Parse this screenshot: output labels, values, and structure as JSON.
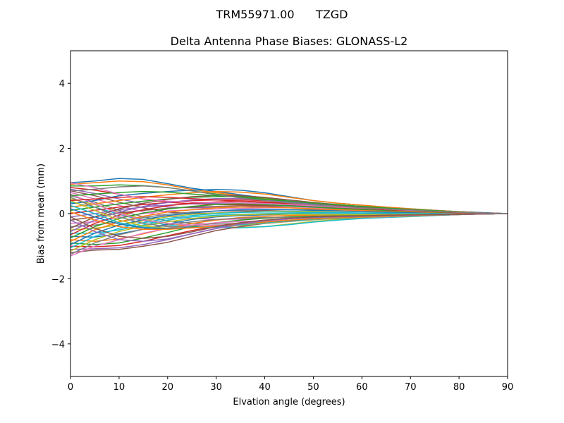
{
  "chart_data": {
    "type": "line",
    "suptitle": "TRM55971.00      TZGD",
    "title": "Delta Antenna Phase Biases: GLONASS-L2",
    "xlabel": "Elvation angle (degrees)",
    "ylabel": "Bias from mean (mm)",
    "xlim": [
      0,
      90
    ],
    "ylim": [
      -5,
      5
    ],
    "xticks": [
      0,
      10,
      20,
      30,
      40,
      50,
      60,
      70,
      80,
      90
    ],
    "yticks": [
      -4,
      -2,
      0,
      2,
      4
    ],
    "ytick_labels": [
      "−4",
      "−2",
      "0",
      "2",
      "4"
    ],
    "grid": false,
    "legend": "none",
    "x": [
      0,
      5,
      10,
      15,
      20,
      25,
      30,
      35,
      40,
      45,
      50,
      55,
      60,
      65,
      70,
      75,
      80,
      85,
      90
    ],
    "colors": [
      "#1f77b4",
      "#ff7f0e",
      "#2ca02c",
      "#d62728",
      "#9467bd",
      "#8c564b",
      "#e377c2",
      "#7f7f7f",
      "#bcbd22",
      "#17becf"
    ],
    "series": [
      {
        "values": [
          0.95,
          1.0,
          1.08,
          1.05,
          0.92,
          0.78,
          0.68,
          0.58,
          0.48,
          0.38,
          0.3,
          0.26,
          0.22,
          0.18,
          0.14,
          0.1,
          0.06,
          0.03,
          0.0
        ]
      },
      {
        "values": [
          0.9,
          0.95,
          1.0,
          0.98,
          0.88,
          0.74,
          0.64,
          0.55,
          0.46,
          0.37,
          0.3,
          0.25,
          0.21,
          0.17,
          0.13,
          0.09,
          0.05,
          0.02,
          0.0
        ]
      },
      {
        "values": [
          0.85,
          0.85,
          0.88,
          0.86,
          0.8,
          0.7,
          0.6,
          0.52,
          0.44,
          0.35,
          0.28,
          0.24,
          0.2,
          0.16,
          0.12,
          0.08,
          0.05,
          0.02,
          0.0
        ]
      },
      {
        "values": [
          0.8,
          0.72,
          0.6,
          0.45,
          0.35,
          0.3,
          0.28,
          0.27,
          0.26,
          0.25,
          0.22,
          0.2,
          0.18,
          0.15,
          0.11,
          0.08,
          0.04,
          0.02,
          0.0
        ]
      },
      {
        "values": [
          0.75,
          0.62,
          0.45,
          0.3,
          0.2,
          0.18,
          0.18,
          0.2,
          0.22,
          0.22,
          0.2,
          0.18,
          0.16,
          0.13,
          0.1,
          0.07,
          0.04,
          0.02,
          0.0
        ]
      },
      {
        "values": [
          0.7,
          0.55,
          0.35,
          0.18,
          0.05,
          0.0,
          0.02,
          0.06,
          0.1,
          0.12,
          0.12,
          0.12,
          0.11,
          0.09,
          0.07,
          0.05,
          0.03,
          0.01,
          0.0
        ]
      },
      {
        "values": [
          0.65,
          0.45,
          0.25,
          0.05,
          -0.08,
          -0.15,
          -0.18,
          -0.17,
          -0.14,
          -0.1,
          -0.08,
          -0.06,
          -0.05,
          -0.04,
          -0.03,
          -0.02,
          -0.01,
          0.0,
          0.0
        ]
      },
      {
        "values": [
          0.55,
          0.35,
          0.1,
          -0.1,
          -0.22,
          -0.3,
          -0.32,
          -0.3,
          -0.26,
          -0.2,
          -0.15,
          -0.12,
          -0.1,
          -0.08,
          -0.06,
          -0.04,
          -0.02,
          -0.01,
          0.0
        ]
      },
      {
        "values": [
          0.45,
          0.28,
          0.05,
          -0.18,
          -0.3,
          -0.38,
          -0.42,
          -0.42,
          -0.4,
          -0.32,
          -0.24,
          -0.18,
          -0.14,
          -0.11,
          -0.08,
          -0.05,
          -0.03,
          -0.01,
          0.0
        ]
      },
      {
        "values": [
          0.35,
          0.2,
          -0.02,
          -0.22,
          -0.35,
          -0.4,
          -0.42,
          -0.44,
          -0.4,
          -0.34,
          -0.26,
          -0.2,
          -0.15,
          -0.12,
          -0.09,
          -0.06,
          -0.03,
          -0.01,
          0.0
        ]
      },
      {
        "values": [
          0.3,
          0.4,
          0.55,
          0.62,
          0.68,
          0.72,
          0.74,
          0.72,
          0.64,
          0.52,
          0.4,
          0.32,
          0.26,
          0.2,
          0.15,
          0.1,
          0.06,
          0.03,
          0.0
        ]
      },
      {
        "values": [
          0.2,
          0.3,
          0.4,
          0.5,
          0.58,
          0.64,
          0.68,
          0.66,
          0.6,
          0.5,
          0.4,
          0.32,
          0.26,
          0.2,
          0.15,
          0.1,
          0.06,
          0.02,
          0.0
        ]
      },
      {
        "values": [
          0.1,
          0.2,
          0.3,
          0.38,
          0.45,
          0.5,
          0.52,
          0.52,
          0.48,
          0.42,
          0.34,
          0.28,
          0.22,
          0.17,
          0.13,
          0.09,
          0.05,
          0.02,
          0.0
        ]
      },
      {
        "values": [
          0.0,
          0.1,
          0.2,
          0.28,
          0.34,
          0.4,
          0.42,
          0.42,
          0.4,
          0.36,
          0.3,
          0.25,
          0.2,
          0.16,
          0.12,
          0.08,
          0.05,
          0.02,
          0.0
        ]
      },
      {
        "values": [
          -0.1,
          0.0,
          0.12,
          0.2,
          0.26,
          0.3,
          0.32,
          0.33,
          0.32,
          0.3,
          0.26,
          0.22,
          0.18,
          0.14,
          0.1,
          0.07,
          0.04,
          0.02,
          0.0
        ]
      },
      {
        "values": [
          -0.2,
          -0.1,
          0.02,
          0.1,
          0.16,
          0.2,
          0.22,
          0.24,
          0.24,
          0.24,
          0.22,
          0.19,
          0.16,
          0.13,
          0.1,
          0.06,
          0.04,
          0.02,
          0.0
        ]
      },
      {
        "values": [
          -0.3,
          -0.25,
          -0.12,
          0.0,
          0.08,
          0.12,
          0.14,
          0.16,
          0.18,
          0.18,
          0.17,
          0.15,
          0.13,
          0.1,
          0.08,
          0.05,
          0.03,
          0.01,
          0.0
        ]
      },
      {
        "values": [
          -0.4,
          -0.35,
          -0.25,
          -0.12,
          -0.02,
          0.05,
          0.08,
          0.1,
          0.12,
          0.12,
          0.12,
          0.11,
          0.1,
          0.08,
          0.06,
          0.04,
          0.02,
          0.01,
          0.0
        ]
      },
      {
        "values": [
          -0.5,
          -0.45,
          -0.35,
          -0.22,
          -0.1,
          -0.02,
          0.02,
          0.04,
          0.06,
          0.07,
          0.07,
          0.07,
          0.06,
          0.05,
          0.04,
          0.03,
          0.02,
          0.01,
          0.0
        ]
      },
      {
        "values": [
          -0.6,
          -0.6,
          -0.5,
          -0.35,
          -0.2,
          -0.1,
          -0.05,
          -0.02,
          0.0,
          0.01,
          0.02,
          0.02,
          0.02,
          0.02,
          0.01,
          0.01,
          0.0,
          0.0,
          0.0
        ]
      },
      {
        "values": [
          -0.7,
          -0.72,
          -0.62,
          -0.48,
          -0.32,
          -0.18,
          -0.1,
          -0.06,
          -0.04,
          -0.02,
          -0.02,
          -0.02,
          -0.02,
          -0.01,
          -0.01,
          -0.01,
          0.0,
          0.0,
          0.0
        ]
      },
      {
        "values": [
          -0.8,
          -0.85,
          -0.78,
          -0.62,
          -0.45,
          -0.3,
          -0.2,
          -0.12,
          -0.08,
          -0.06,
          -0.05,
          -0.04,
          -0.04,
          -0.03,
          -0.02,
          -0.01,
          -0.01,
          0.0,
          0.0
        ]
      },
      {
        "values": [
          -0.9,
          -0.95,
          -0.9,
          -0.75,
          -0.58,
          -0.4,
          -0.28,
          -0.2,
          -0.14,
          -0.1,
          -0.08,
          -0.07,
          -0.06,
          -0.05,
          -0.04,
          -0.02,
          -0.01,
          0.0,
          0.0
        ]
      },
      {
        "values": [
          -1.0,
          -1.02,
          -0.98,
          -0.85,
          -0.68,
          -0.52,
          -0.38,
          -0.28,
          -0.2,
          -0.15,
          -0.12,
          -0.1,
          -0.08,
          -0.06,
          -0.05,
          -0.03,
          -0.02,
          -0.01,
          0.0
        ]
      },
      {
        "values": [
          -1.1,
          -1.08,
          -1.05,
          -0.95,
          -0.8,
          -0.62,
          -0.46,
          -0.34,
          -0.26,
          -0.2,
          -0.16,
          -0.13,
          -0.1,
          -0.08,
          -0.06,
          -0.04,
          -0.02,
          -0.01,
          0.0
        ]
      },
      {
        "values": [
          -1.2,
          -1.12,
          -1.1,
          -1.0,
          -0.88,
          -0.7,
          -0.52,
          -0.4,
          -0.3,
          -0.24,
          -0.18,
          -0.14,
          -0.11,
          -0.09,
          -0.07,
          -0.05,
          -0.03,
          -0.01,
          0.0
        ]
      },
      {
        "values": [
          -1.3,
          -1.0,
          -0.8,
          -0.6,
          -0.45,
          -0.35,
          -0.28,
          -0.24,
          -0.22,
          -0.2,
          -0.18,
          -0.15,
          -0.12,
          -0.1,
          -0.07,
          -0.05,
          -0.03,
          -0.01,
          0.0
        ]
      },
      {
        "values": [
          -1.25,
          -0.9,
          -0.65,
          -0.48,
          -0.35,
          -0.25,
          -0.18,
          -0.14,
          -0.12,
          -0.12,
          -0.12,
          -0.1,
          -0.09,
          -0.07,
          -0.05,
          -0.04,
          -0.02,
          -0.01,
          0.0
        ]
      },
      {
        "values": [
          -1.15,
          -0.8,
          -0.55,
          -0.38,
          -0.25,
          -0.15,
          -0.08,
          -0.04,
          -0.02,
          -0.02,
          -0.03,
          -0.03,
          -0.03,
          -0.03,
          -0.02,
          -0.02,
          -0.01,
          0.0,
          0.0
        ]
      },
      {
        "values": [
          -1.05,
          -0.7,
          -0.45,
          -0.28,
          -0.15,
          -0.06,
          0.0,
          0.04,
          0.05,
          0.05,
          0.04,
          0.03,
          0.02,
          0.02,
          0.01,
          0.01,
          0.0,
          0.0,
          0.0
        ]
      },
      {
        "values": [
          -0.95,
          -0.6,
          -0.35,
          -0.18,
          -0.06,
          0.02,
          0.08,
          0.12,
          0.13,
          0.12,
          0.1,
          0.08,
          0.06,
          0.05,
          0.04,
          0.03,
          0.02,
          0.01,
          0.0
        ]
      },
      {
        "values": [
          -0.85,
          -0.5,
          -0.25,
          -0.08,
          0.05,
          0.12,
          0.18,
          0.2,
          0.2,
          0.18,
          0.15,
          0.12,
          0.1,
          0.08,
          0.06,
          0.04,
          0.02,
          0.01,
          0.0
        ]
      },
      {
        "values": [
          -0.75,
          -0.4,
          -0.15,
          0.02,
          0.14,
          0.22,
          0.28,
          0.3,
          0.28,
          0.24,
          0.2,
          0.16,
          0.13,
          0.1,
          0.08,
          0.05,
          0.03,
          0.01,
          0.0
        ]
      },
      {
        "values": [
          -0.65,
          -0.3,
          -0.05,
          0.12,
          0.24,
          0.32,
          0.36,
          0.38,
          0.36,
          0.31,
          0.25,
          0.2,
          0.16,
          0.12,
          0.09,
          0.06,
          0.03,
          0.01,
          0.0
        ]
      },
      {
        "values": [
          -0.55,
          -0.2,
          0.05,
          0.22,
          0.34,
          0.42,
          0.46,
          0.46,
          0.42,
          0.36,
          0.29,
          0.23,
          0.18,
          0.14,
          0.1,
          0.07,
          0.04,
          0.02,
          0.0
        ]
      },
      {
        "values": [
          -0.45,
          -0.1,
          0.15,
          0.32,
          0.44,
          0.52,
          0.56,
          0.55,
          0.5,
          0.42,
          0.34,
          0.27,
          0.21,
          0.16,
          0.12,
          0.08,
          0.04,
          0.02,
          0.0
        ]
      },
      {
        "values": [
          0.6,
          0.3,
          0.0,
          -0.2,
          -0.3,
          -0.35,
          -0.36,
          -0.34,
          -0.3,
          -0.24,
          -0.18,
          -0.14,
          -0.11,
          -0.09,
          -0.06,
          -0.04,
          -0.02,
          -0.01,
          0.0
        ]
      },
      {
        "values": [
          0.5,
          0.2,
          -0.1,
          -0.3,
          -0.4,
          -0.42,
          -0.4,
          -0.36,
          -0.3,
          -0.24,
          -0.19,
          -0.15,
          -0.12,
          -0.09,
          -0.07,
          -0.05,
          -0.03,
          -0.01,
          0.0
        ]
      },
      {
        "values": [
          0.4,
          0.1,
          -0.2,
          -0.38,
          -0.45,
          -0.44,
          -0.4,
          -0.35,
          -0.29,
          -0.23,
          -0.18,
          -0.14,
          -0.11,
          -0.09,
          -0.07,
          -0.04,
          -0.02,
          -0.01,
          0.0
        ]
      },
      {
        "values": [
          0.25,
          0.0,
          -0.28,
          -0.42,
          -0.46,
          -0.44,
          -0.4,
          -0.34,
          -0.28,
          -0.22,
          -0.17,
          -0.13,
          -0.1,
          -0.08,
          -0.06,
          -0.04,
          -0.02,
          -0.01,
          0.0
        ]
      },
      {
        "values": [
          0.15,
          -0.1,
          -0.32,
          -0.44,
          -0.46,
          -0.43,
          -0.38,
          -0.32,
          -0.26,
          -0.21,
          -0.16,
          -0.12,
          -0.1,
          -0.08,
          -0.06,
          -0.04,
          -0.02,
          -0.01,
          0.0
        ]
      },
      {
        "values": [
          0.05,
          -0.2,
          -0.4,
          -0.48,
          -0.48,
          -0.44,
          -0.38,
          -0.32,
          -0.26,
          -0.2,
          -0.16,
          -0.12,
          -0.1,
          -0.08,
          -0.06,
          -0.04,
          -0.02,
          -0.01,
          0.0
        ]
      },
      {
        "values": [
          0.55,
          0.6,
          0.65,
          0.68,
          0.66,
          0.6,
          0.55,
          0.5,
          0.44,
          0.38,
          0.32,
          0.27,
          0.22,
          0.17,
          0.13,
          0.09,
          0.05,
          0.02,
          0.0
        ]
      },
      {
        "values": [
          0.4,
          0.45,
          0.5,
          0.52,
          0.5,
          0.46,
          0.42,
          0.38,
          0.34,
          0.3,
          0.26,
          0.22,
          0.18,
          0.14,
          0.11,
          0.07,
          0.04,
          0.02,
          0.0
        ]
      },
      {
        "values": [
          -0.2,
          -0.55,
          -0.8,
          -0.85,
          -0.78,
          -0.62,
          -0.45,
          -0.32,
          -0.22,
          -0.16,
          -0.12,
          -0.1,
          -0.08,
          -0.06,
          -0.05,
          -0.03,
          -0.02,
          -0.01,
          0.0
        ]
      },
      {
        "values": [
          -0.1,
          -0.45,
          -0.7,
          -0.76,
          -0.7,
          -0.56,
          -0.4,
          -0.28,
          -0.2,
          -0.14,
          -0.1,
          -0.08,
          -0.07,
          -0.05,
          -0.04,
          -0.03,
          -0.02,
          -0.01,
          0.0
        ]
      },
      {
        "values": [
          0.95,
          0.8,
          0.6,
          0.45,
          0.38,
          0.35,
          0.34,
          0.33,
          0.31,
          0.28,
          0.24,
          0.2,
          0.17,
          0.14,
          0.1,
          0.07,
          0.04,
          0.02,
          0.0
        ]
      },
      {
        "values": [
          0.7,
          0.75,
          0.82,
          0.85,
          0.8,
          0.7,
          0.58,
          0.48,
          0.4,
          0.33,
          0.27,
          0.22,
          0.18,
          0.14,
          0.11,
          0.07,
          0.04,
          0.02,
          0.0
        ]
      }
    ]
  }
}
